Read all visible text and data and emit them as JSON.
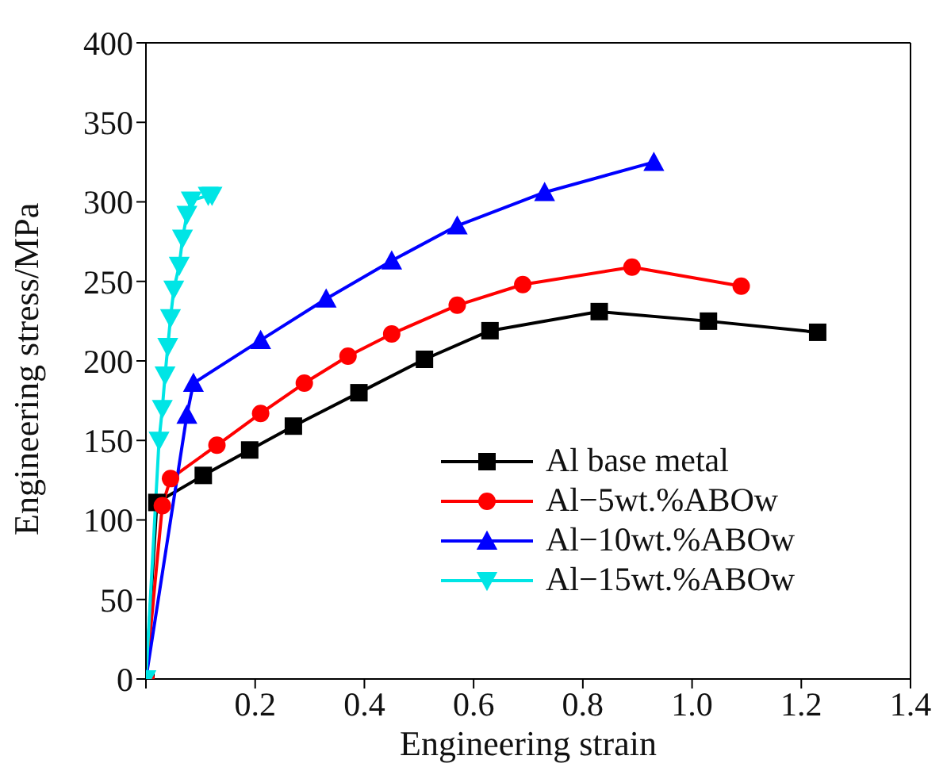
{
  "chart_data": {
    "type": "line",
    "xlabel": "Engineering strain",
    "ylabel": "Engineering stress/MPa",
    "xlim": [
      0,
      1.4
    ],
    "xticks": [
      {
        "value": 0,
        "label": null
      },
      0.2,
      0.4,
      0.6,
      0.8,
      {
        "value": 1,
        "label": "1.0"
      },
      1.2,
      1.4
    ],
    "ylim": [
      0,
      400
    ],
    "yticks": [
      0,
      50,
      100,
      150,
      200,
      250,
      300,
      350,
      400
    ],
    "legend": "bottom right",
    "line_style": "solid",
    "series": [
      {
        "name": "Al base metal",
        "color": "#000000",
        "marker": "square",
        "x": [
          0,
          0.02,
          0.105,
          0.19,
          0.27,
          0.39,
          0.51,
          0.63,
          0.83,
          1.03,
          1.23
        ],
        "values": [
          0,
          111,
          128,
          144,
          159,
          180,
          201,
          219,
          231,
          225,
          218
        ]
      },
      {
        "name": "Al−5wt.%ABOw",
        "color": "#ff0000",
        "marker": "circle",
        "x": [
          0,
          0.03,
          0.045,
          0.13,
          0.21,
          0.29,
          0.37,
          0.45,
          0.57,
          0.69,
          0.89,
          1.09
        ],
        "values": [
          0,
          109,
          126,
          147,
          167,
          186,
          203,
          217,
          235,
          248,
          259,
          247
        ]
      },
      {
        "name": "Al−10wt.%ABOw",
        "color": "#0000ff",
        "marker": "triangle",
        "x": [
          0,
          0.075,
          0.087,
          0.21,
          0.33,
          0.45,
          0.57,
          0.73,
          0.93
        ],
        "values": [
          0,
          166,
          186,
          213,
          239,
          263,
          285,
          306,
          325
        ]
      },
      {
        "name": "Al−15wt.%ABOw",
        "color": "#00e5e5",
        "marker": "triangle-down",
        "x": [
          0,
          0.024,
          0.03,
          0.035,
          0.04,
          0.045,
          0.051,
          0.061,
          0.067,
          0.075,
          0.083,
          0.114,
          0.121
        ],
        "values": [
          0,
          150,
          170,
          191,
          209,
          227,
          245,
          260,
          277,
          292,
          301,
          304,
          304
        ]
      }
    ]
  }
}
